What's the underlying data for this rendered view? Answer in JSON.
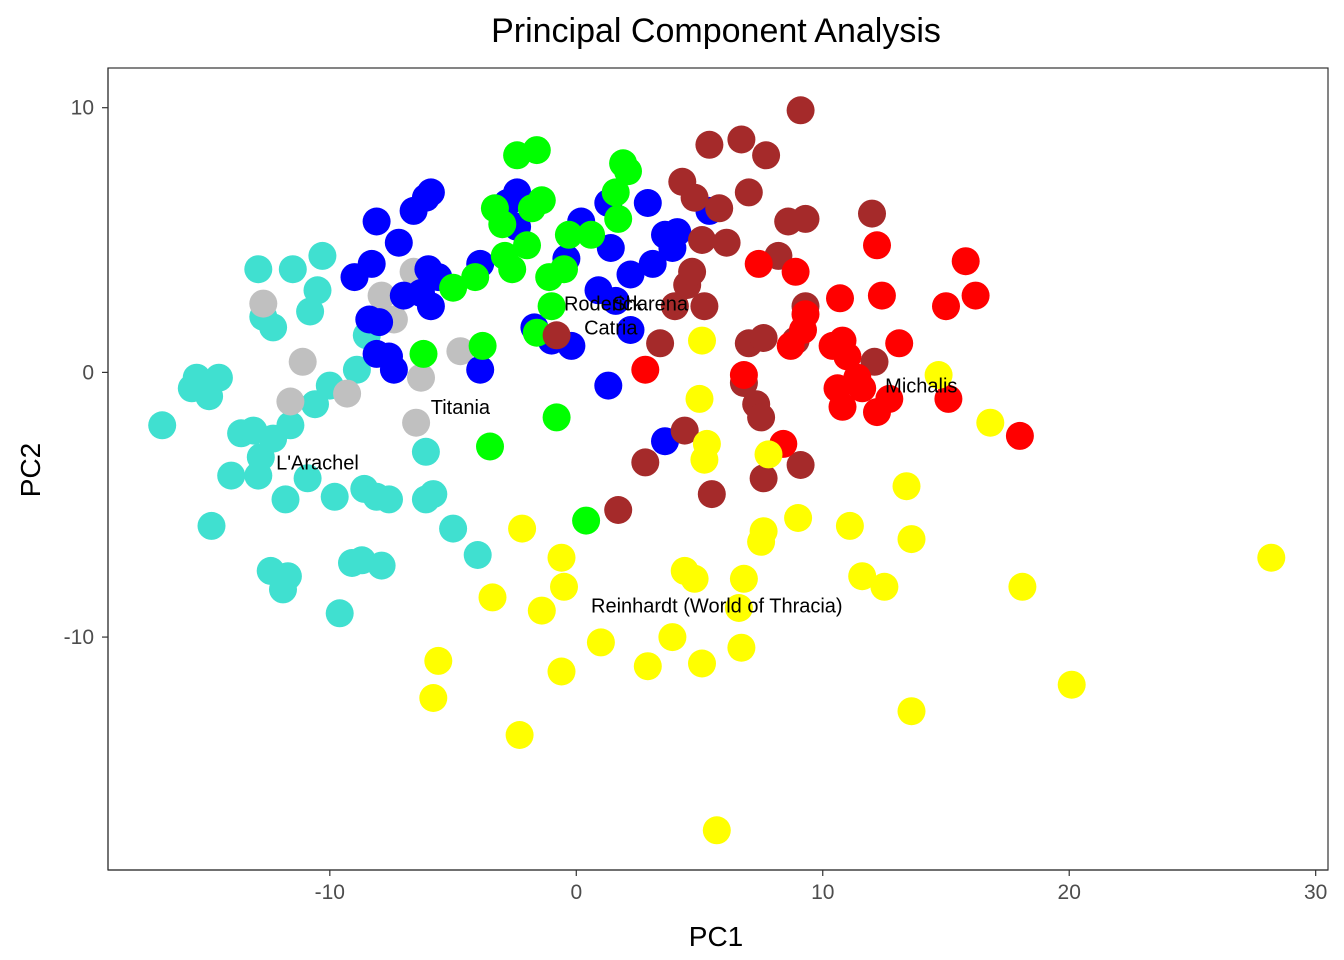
{
  "chart_data": {
    "type": "scatter",
    "title": "Principal Component Analysis",
    "xlabel": "PC1",
    "ylabel": "PC2",
    "xlim": [
      -19,
      30.5
    ],
    "ylim": [
      -18.8,
      11.5
    ],
    "x_ticks": [
      -10,
      0,
      10,
      20,
      30
    ],
    "y_ticks": [
      -10,
      0,
      10
    ],
    "x_tick_labels": [
      "-10",
      "0",
      "10",
      "20",
      "30"
    ],
    "y_tick_labels": [
      "-10",
      "0",
      "10"
    ],
    "grid": false,
    "legend": "none",
    "series": [
      {
        "color": "#40e0d0",
        "points": [
          [
            -16.8,
            -2.0
          ],
          [
            -15.6,
            -0.6
          ],
          [
            -15.4,
            -0.2
          ],
          [
            -14.9,
            -0.9
          ],
          [
            -14.5,
            -0.2
          ],
          [
            -14.8,
            -5.8
          ],
          [
            -14.0,
            -3.9
          ],
          [
            -13.6,
            -2.3
          ],
          [
            -13.1,
            -2.2
          ],
          [
            -12.9,
            -3.9
          ],
          [
            -12.8,
            -3.2
          ],
          [
            -12.9,
            3.9
          ],
          [
            -12.7,
            2.1
          ],
          [
            -12.3,
            1.7
          ],
          [
            -12.3,
            -2.5
          ],
          [
            -12.4,
            -7.5
          ],
          [
            -11.9,
            -8.2
          ],
          [
            -11.7,
            -7.7
          ],
          [
            -11.8,
            -4.8
          ],
          [
            -11.6,
            -2.0
          ],
          [
            -11.5,
            3.9
          ],
          [
            -10.9,
            -4.0
          ],
          [
            -10.8,
            2.3
          ],
          [
            -10.6,
            -1.2
          ],
          [
            -10.5,
            3.1
          ],
          [
            -10.3,
            4.4
          ],
          [
            -10.0,
            -0.5
          ],
          [
            -9.8,
            -4.7
          ],
          [
            -9.6,
            -9.1
          ],
          [
            -9.1,
            -7.2
          ],
          [
            -8.7,
            -7.1
          ],
          [
            -8.9,
            0.1
          ],
          [
            -8.6,
            -4.4
          ],
          [
            -8.5,
            1.4
          ],
          [
            -8.1,
            -4.7
          ],
          [
            -7.9,
            -7.3
          ],
          [
            -7.6,
            -4.8
          ],
          [
            -6.1,
            -3.0
          ],
          [
            -6.1,
            -4.8
          ],
          [
            -5.8,
            -4.6
          ],
          [
            -5.0,
            -5.9
          ],
          [
            -4.0,
            -6.9
          ]
        ]
      },
      {
        "color": "#c0c0c0",
        "points": [
          [
            -12.7,
            2.6
          ],
          [
            -11.6,
            -1.1
          ],
          [
            -11.1,
            0.4
          ],
          [
            -9.3,
            -0.8
          ],
          [
            -7.9,
            2.9
          ],
          [
            -7.4,
            2.0
          ],
          [
            -6.3,
            -0.2
          ],
          [
            -6.5,
            -1.9
          ],
          [
            -6.6,
            3.8
          ],
          [
            -4.7,
            0.8
          ]
        ]
      },
      {
        "color": "#0000ff",
        "points": [
          [
            -9.0,
            3.6
          ],
          [
            -8.3,
            4.1
          ],
          [
            -8.1,
            5.7
          ],
          [
            -8.0,
            1.9
          ],
          [
            -8.4,
            2.0
          ],
          [
            -8.1,
            0.7
          ],
          [
            -7.6,
            0.6
          ],
          [
            -7.4,
            0.1
          ],
          [
            -7.2,
            4.9
          ],
          [
            -7.0,
            2.9
          ],
          [
            -6.6,
            6.1
          ],
          [
            -6.1,
            6.6
          ],
          [
            -6.3,
            3.0
          ],
          [
            -5.9,
            6.8
          ],
          [
            -6.0,
            3.9
          ],
          [
            -5.6,
            3.6
          ],
          [
            -5.9,
            2.5
          ],
          [
            -3.9,
            4.1
          ],
          [
            -3.9,
            0.1
          ],
          [
            -2.8,
            6.4
          ],
          [
            -2.4,
            6.8
          ],
          [
            -2.4,
            5.5
          ],
          [
            -1.7,
            1.7
          ],
          [
            -1.0,
            1.2
          ],
          [
            -0.4,
            4.3
          ],
          [
            -0.2,
            1.0
          ],
          [
            0.2,
            5.7
          ],
          [
            0.9,
            3.1
          ],
          [
            1.3,
            6.4
          ],
          [
            1.4,
            4.7
          ],
          [
            1.6,
            2.7
          ],
          [
            2.2,
            3.7
          ],
          [
            2.2,
            1.6
          ],
          [
            2.9,
            6.4
          ],
          [
            3.1,
            4.1
          ],
          [
            3.6,
            5.2
          ],
          [
            3.9,
            4.7
          ],
          [
            4.1,
            5.3
          ],
          [
            1.3,
            -0.5
          ],
          [
            3.6,
            -2.6
          ],
          [
            5.4,
            6.1
          ]
        ]
      },
      {
        "color": "#00ff00",
        "points": [
          [
            -6.2,
            0.7
          ],
          [
            -5.0,
            3.2
          ],
          [
            -4.1,
            3.6
          ],
          [
            -3.8,
            1.0
          ],
          [
            -3.3,
            6.2
          ],
          [
            -3.0,
            5.6
          ],
          [
            -2.9,
            4.4
          ],
          [
            -2.6,
            3.9
          ],
          [
            -2.4,
            8.2
          ],
          [
            -2.0,
            4.8
          ],
          [
            -1.8,
            6.2
          ],
          [
            -1.6,
            8.4
          ],
          [
            -1.4,
            6.5
          ],
          [
            -1.1,
            3.6
          ],
          [
            -0.5,
            3.9
          ],
          [
            -0.3,
            5.2
          ],
          [
            0.6,
            5.2
          ],
          [
            1.6,
            6.8
          ],
          [
            1.7,
            5.8
          ],
          [
            1.9,
            7.9
          ],
          [
            2.1,
            7.6
          ],
          [
            -1.6,
            1.5
          ],
          [
            -0.8,
            -1.7
          ],
          [
            0.4,
            -5.6
          ],
          [
            -3.5,
            -2.8
          ],
          [
            -1.0,
            2.5
          ]
        ]
      },
      {
        "color": "#a52a2a",
        "points": [
          [
            -0.8,
            1.4
          ],
          [
            1.7,
            -5.2
          ],
          [
            2.8,
            -3.4
          ],
          [
            3.4,
            1.1
          ],
          [
            4.0,
            2.5
          ],
          [
            4.3,
            7.2
          ],
          [
            4.4,
            -2.2
          ],
          [
            4.5,
            3.3
          ],
          [
            4.7,
            3.8
          ],
          [
            4.8,
            6.6
          ],
          [
            5.1,
            5.0
          ],
          [
            5.2,
            2.5
          ],
          [
            5.4,
            8.6
          ],
          [
            5.5,
            -4.6
          ],
          [
            5.8,
            6.2
          ],
          [
            6.1,
            4.9
          ],
          [
            6.7,
            8.8
          ],
          [
            6.8,
            -0.4
          ],
          [
            7.0,
            6.8
          ],
          [
            7.0,
            1.1
          ],
          [
            7.3,
            -1.2
          ],
          [
            7.5,
            -1.7
          ],
          [
            7.6,
            1.3
          ],
          [
            7.6,
            -4.0
          ],
          [
            7.7,
            8.2
          ],
          [
            8.2,
            4.4
          ],
          [
            8.6,
            5.7
          ],
          [
            8.9,
            1.2
          ],
          [
            9.1,
            9.9
          ],
          [
            9.1,
            -3.5
          ],
          [
            9.3,
            5.8
          ],
          [
            9.3,
            2.5
          ],
          [
            12.0,
            6.0
          ],
          [
            12.1,
            0.4
          ]
        ]
      },
      {
        "color": "#ff0000",
        "points": [
          [
            2.8,
            0.1
          ],
          [
            6.8,
            -0.1
          ],
          [
            7.4,
            4.1
          ],
          [
            8.4,
            -2.7
          ],
          [
            8.7,
            1.0
          ],
          [
            8.9,
            3.8
          ],
          [
            9.2,
            1.6
          ],
          [
            9.3,
            2.2
          ],
          [
            10.7,
            2.8
          ],
          [
            10.4,
            1.0
          ],
          [
            10.6,
            -0.6
          ],
          [
            10.8,
            1.2
          ],
          [
            10.8,
            -1.3
          ],
          [
            11.0,
            0.6
          ],
          [
            11.4,
            -0.2
          ],
          [
            11.6,
            -0.6
          ],
          [
            12.2,
            -1.5
          ],
          [
            12.2,
            4.8
          ],
          [
            12.4,
            2.9
          ],
          [
            12.7,
            -1.0
          ],
          [
            13.1,
            1.1
          ],
          [
            15.0,
            2.5
          ],
          [
            15.1,
            -1.0
          ],
          [
            15.8,
            4.2
          ],
          [
            16.2,
            2.9
          ],
          [
            18.0,
            -2.4
          ]
        ]
      },
      {
        "color": "#ffff00",
        "points": [
          [
            -2.2,
            -5.9
          ],
          [
            -3.4,
            -8.5
          ],
          [
            -5.6,
            -10.9
          ],
          [
            -5.8,
            -12.3
          ],
          [
            -2.3,
            -13.7
          ],
          [
            -0.6,
            -7.0
          ],
          [
            -0.5,
            -8.1
          ],
          [
            -0.6,
            -11.3
          ],
          [
            -1.4,
            -9.0
          ],
          [
            1.0,
            -10.2
          ],
          [
            2.9,
            -11.1
          ],
          [
            3.9,
            -10.0
          ],
          [
            4.4,
            -7.5
          ],
          [
            4.8,
            -7.8
          ],
          [
            5.1,
            -11.0
          ],
          [
            5.0,
            -1.0
          ],
          [
            5.1,
            1.2
          ],
          [
            5.3,
            -2.7
          ],
          [
            5.2,
            -3.3
          ],
          [
            5.7,
            -17.3
          ],
          [
            6.6,
            -8.9
          ],
          [
            6.7,
            -10.4
          ],
          [
            6.8,
            -7.8
          ],
          [
            7.5,
            -6.4
          ],
          [
            7.6,
            -6.0
          ],
          [
            7.8,
            -3.1
          ],
          [
            9.0,
            -5.5
          ],
          [
            11.1,
            -5.8
          ],
          [
            11.6,
            -7.7
          ],
          [
            12.5,
            -8.1
          ],
          [
            13.4,
            -4.3
          ],
          [
            13.6,
            -6.3
          ],
          [
            13.6,
            -12.8
          ],
          [
            14.7,
            -0.1
          ],
          [
            16.8,
            -1.9
          ],
          [
            18.1,
            -8.1
          ],
          [
            20.1,
            -11.8
          ],
          [
            28.2,
            -7.0
          ]
        ]
      }
    ],
    "annotations": [
      {
        "text": "Roderick",
        "x": 1.1,
        "y": 2.6
      },
      {
        "text": "Sharena",
        "x": 3.0,
        "y": 2.6
      },
      {
        "text": "Catria",
        "x": 1.4,
        "y": 1.7
      },
      {
        "text": "Michalis",
        "x": 14.0,
        "y": -0.5
      },
      {
        "text": "Titania",
        "x": -4.7,
        "y": -1.3
      },
      {
        "text": "L'Arachel",
        "x": -10.5,
        "y": -3.4
      },
      {
        "text": "Reinhardt (World of Thracia)",
        "x": 5.7,
        "y": -8.8
      }
    ]
  }
}
